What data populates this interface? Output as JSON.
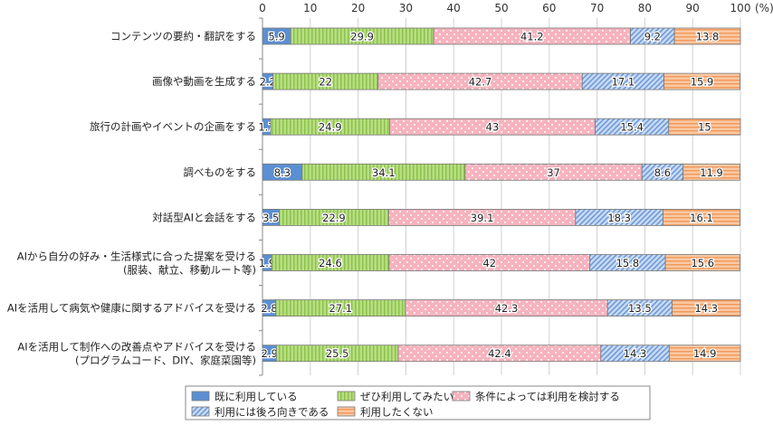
{
  "chart_data": {
    "type": "bar",
    "orientation": "horizontal",
    "stacked": true,
    "title": "",
    "xlabel": "",
    "ylabel": "",
    "unit_label": "(%)",
    "xlim": [
      0,
      100
    ],
    "xticks": [
      0,
      10,
      20,
      30,
      40,
      50,
      60,
      70,
      80,
      90,
      100
    ],
    "grid": true,
    "legend_position": "bottom",
    "categories": [
      {
        "line1": "コンテンツの要約・翻訳をする",
        "line2": ""
      },
      {
        "line1": "画像や動画を生成する",
        "line2": ""
      },
      {
        "line1": "旅行の計画やイベントの企画をする",
        "line2": ""
      },
      {
        "line1": "調べものをする",
        "line2": ""
      },
      {
        "line1": "対話型AIと会話をする",
        "line2": ""
      },
      {
        "line1": "AIから自分の好み・生活様式に合った提案を受ける",
        "line2": "(服装、献立、移動ルート等)"
      },
      {
        "line1": "AIを活用して病気や健康に関するアドバイスを受ける",
        "line2": ""
      },
      {
        "line1": "AIを活用して制作への改善点やアドバイスを受ける",
        "line2": "(プログラムコード、DIY、家庭菜園等)"
      }
    ],
    "series": [
      {
        "name": "既に利用している",
        "color": "#5b8fd3",
        "pattern": "solid",
        "values": [
          5.9,
          2.2,
          1.7,
          8.3,
          3.5,
          1.9,
          2.8,
          2.9
        ]
      },
      {
        "name": "ぜひ利用してみたい",
        "color": "#a6d468",
        "pattern": "vstripe",
        "values": [
          29.9,
          22.0,
          24.9,
          34.1,
          22.9,
          24.6,
          27.1,
          25.5
        ]
      },
      {
        "name": "条件によっては利用を検討する",
        "color": "#f6b3be",
        "pattern": "dots",
        "values": [
          41.2,
          42.7,
          43.0,
          37.0,
          39.1,
          42.0,
          42.3,
          42.4
        ]
      },
      {
        "name": "利用には後ろ向きである",
        "color": "#9dbde9",
        "pattern": "diag",
        "values": [
          9.2,
          17.1,
          15.4,
          8.6,
          18.3,
          15.8,
          13.5,
          14.3
        ]
      },
      {
        "name": "利用したくない",
        "color": "#f7b585",
        "pattern": "hstripe",
        "values": [
          13.8,
          15.9,
          15.0,
          11.9,
          16.1,
          15.6,
          14.3,
          14.9
        ]
      }
    ]
  }
}
